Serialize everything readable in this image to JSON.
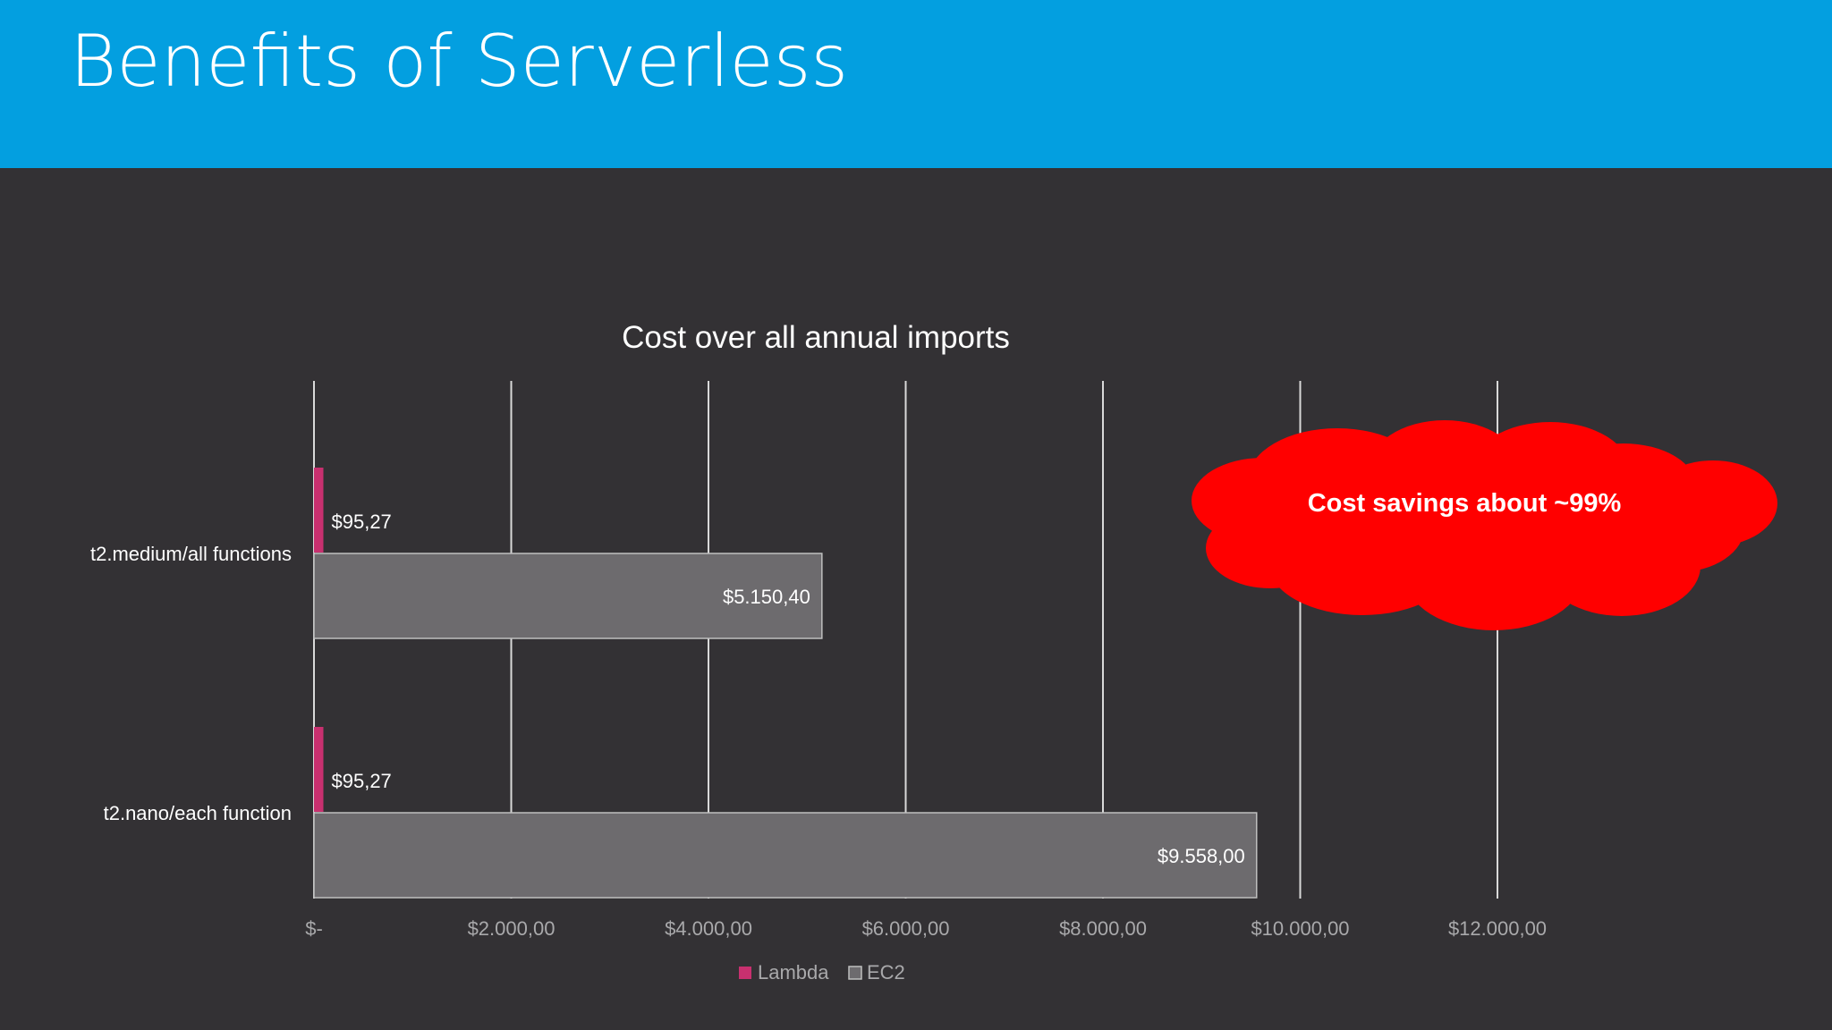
{
  "slide": {
    "title": "Benefits of Serverless",
    "header_color": "#039fe0",
    "background_color": "#333134"
  },
  "callout": {
    "text": "Cost savings about ~99%",
    "color": "#ff0000",
    "shape": "cloud"
  },
  "chart_data": {
    "type": "bar",
    "orientation": "horizontal",
    "title": "Cost over all annual imports",
    "categories": [
      "t2.medium/all functions",
      "t2.nano/each function"
    ],
    "series": [
      {
        "name": "Lambda",
        "color": "#c8306f",
        "values": [
          95.27,
          95.27
        ],
        "labels": [
          "$95,27",
          "$95,27"
        ]
      },
      {
        "name": "EC2",
        "color": "#6d6b6e",
        "values": [
          5150.4,
          9558.0
        ],
        "labels": [
          "$5.150,40",
          "$9.558,00"
        ]
      }
    ],
    "xlim": [
      0,
      12000
    ],
    "xticks": [
      0,
      2000,
      4000,
      6000,
      8000,
      10000,
      12000
    ],
    "xtick_labels": [
      "$-",
      "$2.000,00",
      "$4.000,00",
      "$6.000,00",
      "$8.000,00",
      "$10.000,00",
      "$12.000,00"
    ],
    "grid": true,
    "legend": "bottom"
  }
}
